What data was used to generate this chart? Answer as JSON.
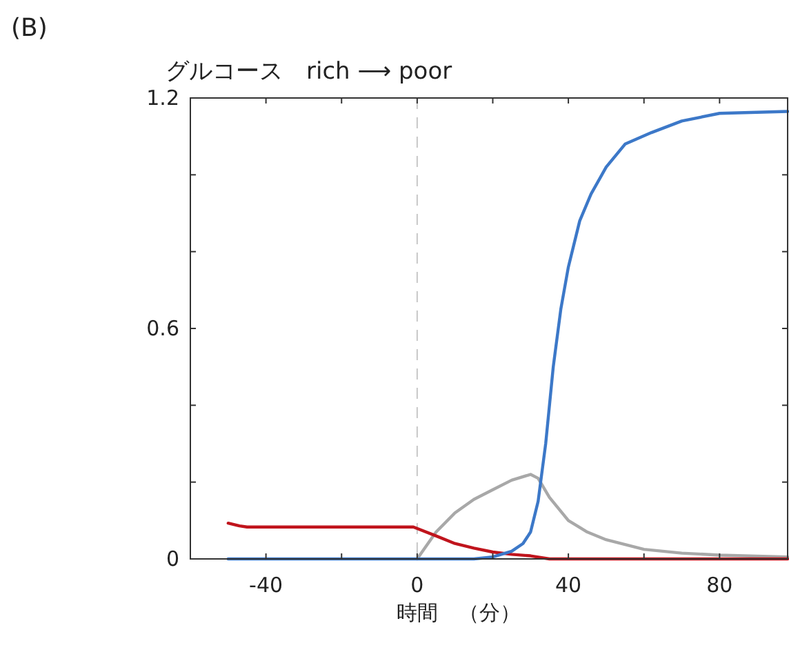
{
  "chart_data": {
    "type": "line",
    "title": "グルコース　rich ⟶ poor",
    "xlabel": "時間　（分）",
    "annotations": [
      "(B)"
    ],
    "xlim": [
      -60,
      98
    ],
    "xticks": [
      {
        "value": -60,
        "label": null
      },
      -40,
      {
        "value": -20,
        "label": null
      },
      0,
      {
        "value": 20,
        "label": null
      },
      40,
      {
        "value": 60,
        "label": null
      },
      80
    ],
    "ylim": [
      0,
      1.2
    ],
    "yticks": [
      0,
      {
        "value": 0.2,
        "label": null
      },
      {
        "value": 0.4,
        "label": null
      },
      0.6,
      {
        "value": 0.8,
        "label": null
      },
      {
        "value": 1.0,
        "label": null
      },
      1.2
    ],
    "grid": false,
    "marker": "none",
    "line_style": "solid",
    "ref_lines": [
      {
        "axis": "x",
        "value": 0,
        "label": null,
        "color": "#c8c8c8",
        "line_style": "dashed"
      }
    ],
    "series": [
      {
        "color": "#a8a8a8",
        "x": [
          0,
          5,
          10,
          15,
          20,
          25,
          30,
          32,
          35,
          40,
          45,
          50,
          60,
          70,
          80,
          98
        ],
        "values": [
          0,
          0.07,
          0.12,
          0.155,
          0.18,
          0.205,
          0.22,
          0.21,
          0.16,
          0.1,
          0.07,
          0.05,
          0.025,
          0.015,
          0.01,
          0.005
        ]
      },
      {
        "color": "#c0141c",
        "x": [
          -50,
          -47,
          -45,
          -30,
          -1,
          5,
          10,
          15,
          20,
          25,
          30,
          35,
          50,
          98
        ],
        "values": [
          0.093,
          0.086,
          0.083,
          0.083,
          0.083,
          0.06,
          0.04,
          0.028,
          0.018,
          0.012,
          0.008,
          0,
          0,
          0
        ]
      },
      {
        "color": "#3c78c8",
        "x": [
          -50,
          0,
          15,
          20,
          25,
          28,
          30,
          32,
          34,
          36,
          38,
          40,
          43,
          46,
          50,
          55,
          62,
          70,
          80,
          98
        ],
        "values": [
          0,
          0,
          0,
          0.005,
          0.02,
          0.04,
          0.07,
          0.15,
          0.3,
          0.5,
          0.65,
          0.76,
          0.88,
          0.95,
          1.02,
          1.08,
          1.11,
          1.14,
          1.16,
          1.165
        ]
      }
    ]
  }
}
